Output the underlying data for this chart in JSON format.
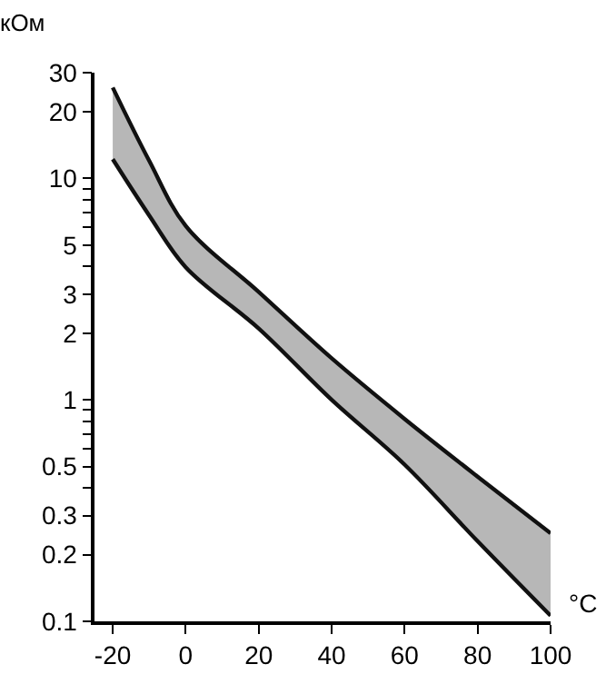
{
  "chart_data": {
    "type": "line",
    "xlabel": "°C",
    "ylabel": "кОм",
    "x": [
      -20,
      -10,
      0,
      20,
      40,
      60,
      80,
      100
    ],
    "series": [
      {
        "color": "#111111",
        "values": [
          25.7,
          12.0,
          6.1,
          3.07,
          1.54,
          0.82,
          0.45,
          0.25
        ],
        "lower": [
          12.2,
          6.8,
          3.97,
          2.1,
          1.0,
          0.51,
          0.23,
          0.106
        ],
        "upper": [
          25.7,
          12.0,
          6.1,
          3.07,
          1.54,
          0.82,
          0.45,
          0.25
        ]
      },
      {
        "color": "#111111",
        "values": [
          12.2,
          6.8,
          3.97,
          2.1,
          1.0,
          0.51,
          0.23,
          0.106
        ]
      }
    ],
    "log": "y",
    "grid": false,
    "legend": false,
    "marker": "none",
    "line_style": "solid",
    "xlim": [
      -25,
      100
    ],
    "xticks": [
      -20,
      0,
      20,
      40,
      60,
      80,
      100
    ],
    "ylim": [
      0.1,
      30
    ],
    "yticks": [
      0.1,
      0.2,
      0.3,
      {
        "value": 0.4,
        "label": null
      },
      0.5,
      {
        "value": 0.6,
        "label": null
      },
      {
        "value": 0.7,
        "label": null
      },
      {
        "value": 0.8,
        "label": null
      },
      {
        "value": 0.9,
        "label": null
      },
      1,
      2,
      3,
      {
        "value": 4,
        "label": null
      },
      5,
      {
        "value": 6,
        "label": null
      },
      {
        "value": 7,
        "label": null
      },
      {
        "value": 8,
        "label": null
      },
      {
        "value": 9,
        "label": null
      },
      10,
      20,
      30
    ]
  }
}
